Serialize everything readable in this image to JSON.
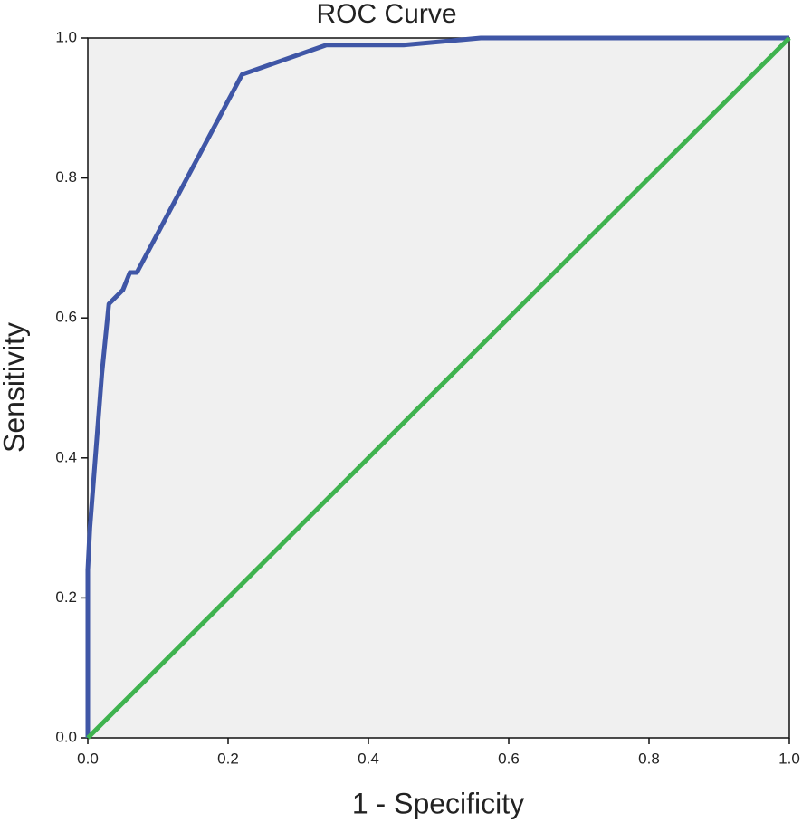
{
  "chart_data": {
    "type": "line",
    "title": "ROC Curve",
    "x_label": "1 - Specificity",
    "y_label": "Sensitivity",
    "series": [
      {
        "color": "#3f56a6",
        "x": [
          0,
          0,
          0.003,
          0.02,
          0.03,
          0.05,
          0.06,
          0.07,
          0.22,
          0.34,
          0.45,
          0.56,
          1.0
        ],
        "values": [
          0,
          0.24,
          0.3,
          0.52,
          0.62,
          0.64,
          0.665,
          0.665,
          0.948,
          0.99,
          0.99,
          1.0,
          1.0
        ]
      },
      {
        "color": "#3fb34f",
        "x": [
          0,
          1.0
        ],
        "values": [
          0,
          1.0
        ]
      }
    ],
    "xlim": [
      0,
      1
    ],
    "ylim": [
      0,
      1
    ],
    "xticks": [
      {
        "value": 0,
        "label": "0.0"
      },
      0.2,
      0.4,
      0.6,
      0.8,
      {
        "value": 1,
        "label": "1.0"
      }
    ],
    "yticks": [
      {
        "value": 0,
        "label": "0.0"
      },
      0.2,
      0.4,
      0.6,
      0.8,
      {
        "value": 1,
        "label": "1.0"
      }
    ],
    "grid": false,
    "background": "#f0f0f0"
  }
}
